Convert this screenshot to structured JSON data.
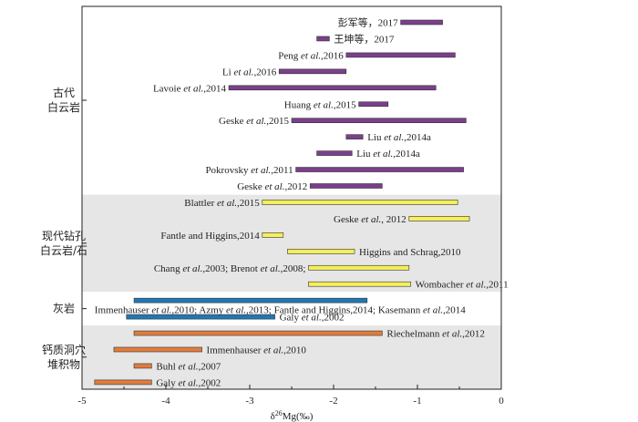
{
  "chart_data": {
    "type": "range-bar",
    "xlabel": "δ26Mg(‰)",
    "xlim": [
      -5,
      0
    ],
    "ticks": [
      -5,
      -4,
      -3,
      -2,
      -1,
      0
    ],
    "tick_labels": [
      "-5",
      "-4",
      "-3",
      "-2",
      "-1",
      "0"
    ],
    "colors": {
      "古代白云岩": "#7b3f8c",
      "现代钻孔白云岩/石": "#f4ef5a",
      "灰岩": "#1f78b4",
      "钙质洞穴堆积物": "#e07c3c",
      "band": "#e6e6e6"
    },
    "categories": [
      {
        "name": "古代白云岩",
        "lines": [
          "古代",
          "白云岩"
        ],
        "shaded": false,
        "y_first_row": 1,
        "y_last_row": 11
      },
      {
        "name": "现代钻孔白云岩/石",
        "lines": [
          "现代钻孔",
          "白云岩/石"
        ],
        "shaded": true,
        "y_first_row": 12,
        "y_last_row": 17
      },
      {
        "name": "灰岩",
        "lines": [
          "灰岩"
        ],
        "shaded": false,
        "y_first_row": 18,
        "y_last_row": 19
      },
      {
        "name": "钙质洞穴堆积物",
        "lines": [
          "钙质洞穴",
          "堆积物"
        ],
        "shaded": true,
        "y_first_row": 20,
        "y_last_row": 23
      }
    ],
    "series": [
      {
        "label": "彭军等，2017",
        "category": "古代白云岩",
        "min": -1.2,
        "max": -0.7,
        "row": 1,
        "label_side": "left"
      },
      {
        "label": "王坤等，2017",
        "category": "古代白云岩",
        "min": -2.2,
        "max": -2.05,
        "row": 2,
        "label_side": "right"
      },
      {
        "label": "Peng et al.,2016",
        "category": "古代白云岩",
        "min": -1.85,
        "max": -0.55,
        "row": 3,
        "label_side": "left"
      },
      {
        "label": "Li et al.,2016",
        "category": "古代白云岩",
        "min": -2.65,
        "max": -1.85,
        "row": 4,
        "label_side": "left"
      },
      {
        "label": "Lavoie et al.,2014",
        "category": "古代白云岩",
        "min": -3.25,
        "max": -0.78,
        "row": 5,
        "label_side": "left"
      },
      {
        "label": "Huang et al.,2015",
        "category": "古代白云岩",
        "min": -1.7,
        "max": -1.35,
        "row": 6,
        "label_side": "left"
      },
      {
        "label": "Geske et al.,2015",
        "category": "古代白云岩",
        "min": -2.5,
        "max": -0.42,
        "row": 7,
        "label_side": "left"
      },
      {
        "label": "Liu et al.,2014a",
        "category": "古代白云岩",
        "min": -1.85,
        "max": -1.65,
        "row": 8,
        "label_side": "right"
      },
      {
        "label": "Liu et al.,2014a",
        "category": "古代白云岩",
        "min": -2.2,
        "max": -1.78,
        "row": 9,
        "label_side": "right"
      },
      {
        "label": "Pokrovsky et al.,2011",
        "category": "古代白云岩",
        "min": -2.45,
        "max": -0.45,
        "row": 10,
        "label_side": "left"
      },
      {
        "label": "Geske et al.,2012",
        "category": "古代白云岩",
        "min": -2.28,
        "max": -1.42,
        "row": 11,
        "label_side": "left"
      },
      {
        "label": "Blattler et al.,2015",
        "category": "现代钻孔白云岩/石",
        "min": -2.85,
        "max": -0.52,
        "row": 12,
        "label_side": "left"
      },
      {
        "label": "Geske et al., 2012",
        "category": "现代钻孔白云岩/石",
        "min": -1.1,
        "max": -0.38,
        "row": 13,
        "label_side": "left"
      },
      {
        "label": "Fantle and Higgins,2014",
        "category": "现代钻孔白云岩/石",
        "min": -2.85,
        "max": -2.6,
        "row": 14,
        "label_side": "left"
      },
      {
        "label": "Higgins and Schrag,2010",
        "category": "现代钻孔白云岩/石",
        "min": -2.55,
        "max": -1.75,
        "row": 15,
        "label_side": "right"
      },
      {
        "label": "Chang et al.,2003; Brenot et al.,2008;",
        "category": "现代钻孔白云岩/石",
        "min": -2.3,
        "max": -1.1,
        "row": 16,
        "label_side": "left"
      },
      {
        "label": "Wombacher et al.,2011",
        "category": "现代钻孔白云岩/石",
        "min": -2.3,
        "max": -1.08,
        "row": 17,
        "label_side": "right"
      },
      {
        "label": "Immenhauser et al.,2010; Azmy et al.,2013; Fantle and Higgins,2014; Kasemann et al.,2014",
        "category": "灰岩",
        "min": -4.38,
        "max": -1.6,
        "row": 18,
        "label_side": "below"
      },
      {
        "label": "Galy et al.,2002",
        "category": "灰岩",
        "min": -4.47,
        "max": -2.7,
        "row": 19,
        "label_side": "right"
      },
      {
        "label": "Riechelmann et al.,2012",
        "category": "钙质洞穴堆积物",
        "min": -4.38,
        "max": -1.42,
        "row": 20,
        "label_side": "right"
      },
      {
        "label": "Immenhauser et al.,2010",
        "category": "钙质洞穴堆积物",
        "min": -4.62,
        "max": -3.57,
        "row": 21,
        "label_side": "right"
      },
      {
        "label": "Buhl et al.,2007",
        "category": "钙质洞穴堆积物",
        "min": -4.38,
        "max": -4.17,
        "row": 22,
        "label_side": "right"
      },
      {
        "label": "Galy et al.,2002",
        "category": "钙质洞穴堆积物",
        "min": -4.85,
        "max": -4.17,
        "row": 23,
        "label_side": "right"
      }
    ]
  }
}
